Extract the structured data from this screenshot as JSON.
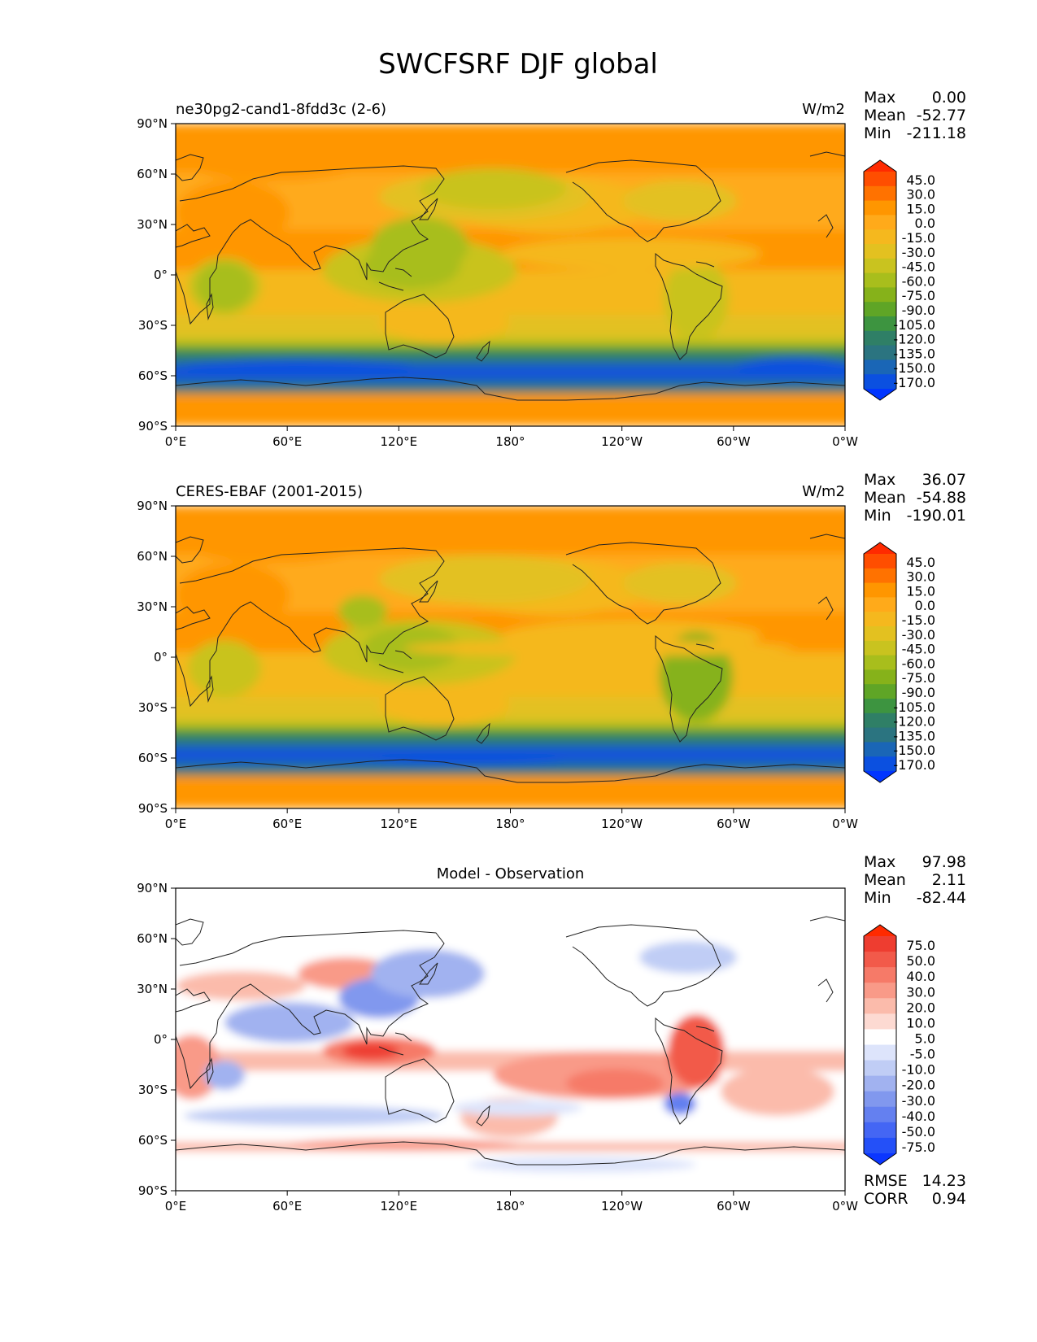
{
  "title": "SWCFSRF DJF global",
  "panels": [
    {
      "id": "model",
      "left_title": "ne30pg2-cand1-8fdd3c (2-6)",
      "center_title": "",
      "units": "W/m2",
      "stats": [
        {
          "label": "Max",
          "value": "0.00"
        },
        {
          "label": "Mean",
          "value": "-52.77"
        },
        {
          "label": "Min",
          "value": "-211.18"
        }
      ],
      "extra_stats": []
    },
    {
      "id": "obs",
      "left_title": "CERES-EBAF (2001-2015)",
      "center_title": "",
      "units": "W/m2",
      "stats": [
        {
          "label": "Max",
          "value": "36.07"
        },
        {
          "label": "Mean",
          "value": "-54.88"
        },
        {
          "label": "Min",
          "value": "-190.01"
        }
      ],
      "extra_stats": []
    },
    {
      "id": "diff",
      "left_title": "",
      "center_title": "Model - Observation",
      "units": "",
      "stats": [
        {
          "label": "Max",
          "value": "97.98"
        },
        {
          "label": "Mean",
          "value": "2.11"
        },
        {
          "label": "Min",
          "value": "-82.44"
        }
      ],
      "extra_stats": [
        {
          "label": "RMSE",
          "value": "14.23"
        },
        {
          "label": "CORR",
          "value": "0.94"
        }
      ]
    }
  ],
  "x_ticks": [
    "0°E",
    "60°E",
    "120°E",
    "180°",
    "120°W",
    "60°W",
    "0°W"
  ],
  "y_ticks": [
    "90°N",
    "60°N",
    "30°N",
    "0°",
    "30°S",
    "60°S",
    "90°S"
  ],
  "colorbar_main": {
    "labels": [
      "45.0",
      "30.0",
      "15.0",
      "0.0",
      "-15.0",
      "-30.0",
      "-45.0",
      "-60.0",
      "-75.0",
      "-90.0",
      "-105.0",
      "-120.0",
      "-135.0",
      "-150.0",
      "-170.0"
    ],
    "colors": [
      "#ff2a00",
      "#ff4e00",
      "#ff7200",
      "#ff9600",
      "#ffaa1a",
      "#f5b81e",
      "#e3c120",
      "#c9c31f",
      "#a8be1c",
      "#86b21a",
      "#5fa526",
      "#3d9440",
      "#2f7f66",
      "#2b7480",
      "#1a66b6",
      "#0b50e0",
      "#0035ff"
    ]
  },
  "colorbar_diff": {
    "labels": [
      "75.0",
      "50.0",
      "40.0",
      "30.0",
      "20.0",
      "10.0",
      "5.0",
      "-5.0",
      "-10.0",
      "-20.0",
      "-30.0",
      "-40.0",
      "-50.0",
      "-75.0"
    ],
    "colors": [
      "#ff2a00",
      "#ee3d30",
      "#f25a4a",
      "#f67a68",
      "#f99a88",
      "#fbbbab",
      "#fddad2",
      "#ffffff",
      "#dde4fb",
      "#c0cdf5",
      "#a1b2f0",
      "#8198ee",
      "#6480f0",
      "#4466f4",
      "#2450f8",
      "#0b36ff"
    ]
  }
}
